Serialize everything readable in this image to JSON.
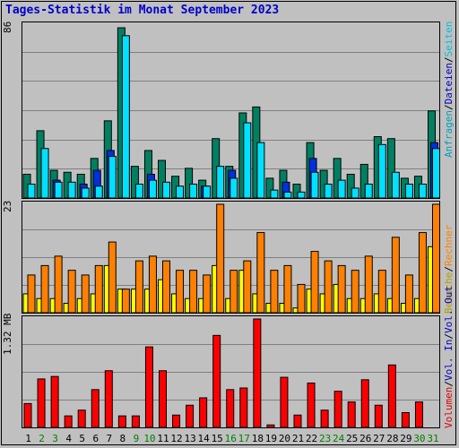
{
  "title": "Tages-Statistik im Monat September 2023",
  "top_max_label": "86",
  "mid_max_label": "23",
  "bottom_max_label": "1.32 MB",
  "legend": {
    "anfragen": "Anfragen",
    "dateien": "Dateien",
    "seiten": "Seiten",
    "besuche": "Besuche",
    "rechner": "Rechner",
    "vol_in": "Vol. In",
    "vol_out": "Vol. Out",
    "volumen": "Volumen",
    "sep": "/"
  },
  "colors": {
    "anfragen": "#008060",
    "dateien": "#00e0ff",
    "seiten": "#0030e0",
    "besuche": "#ffff00",
    "rechner": "#ff8000",
    "volumen": "#ff0000",
    "weekday_label": "#000000",
    "weekend_label": "#008000",
    "background": "#c0c0c0"
  },
  "chart_data": [
    {
      "type": "bar",
      "categories": [
        "1",
        "2",
        "3",
        "4",
        "5",
        "6",
        "7",
        "8",
        "9",
        "10",
        "11",
        "12",
        "13",
        "14",
        "15",
        "16",
        "17",
        "18",
        "19",
        "20",
        "21",
        "22",
        "23",
        "24",
        "25",
        "26",
        "27",
        "28",
        "29",
        "30",
        "31"
      ],
      "weekend_days": [
        "2",
        "3",
        "9",
        "10",
        "16",
        "17",
        "23",
        "24",
        "30",
        "31"
      ],
      "ylim": [
        0,
        86
      ],
      "series": [
        {
          "name": "Anfragen",
          "values": [
            12,
            34,
            14,
            13,
            12,
            20,
            39,
            86,
            16,
            24,
            19,
            11,
            15,
            9,
            30,
            16,
            43,
            46,
            10,
            14,
            7,
            28,
            14,
            20,
            12,
            17,
            31,
            30,
            10,
            11,
            44
          ]
        },
        {
          "name": "Dateien",
          "values": [
            7,
            25,
            8,
            8,
            5,
            6,
            21,
            82,
            7,
            9,
            8,
            6,
            7,
            6,
            16,
            10,
            38,
            28,
            4,
            3,
            3,
            13,
            7,
            9,
            5,
            7,
            27,
            13,
            7,
            7,
            25
          ]
        },
        {
          "name": "Seiten",
          "values": [
            0,
            0,
            0,
            0,
            0,
            0,
            0,
            0,
            0,
            0,
            0,
            0,
            0,
            0,
            0,
            0,
            0,
            0,
            0,
            0,
            0,
            0,
            0,
            0,
            0,
            0,
            0,
            0,
            0,
            0,
            0
          ]
        },
        {
          "name": "Seiten (dunkel)",
          "values": [
            0,
            0,
            9,
            0,
            7,
            14,
            24,
            0,
            0,
            12,
            0,
            0,
            0,
            6,
            0,
            14,
            0,
            0,
            0,
            8,
            0,
            20,
            0,
            0,
            0,
            0,
            0,
            0,
            0,
            0,
            28
          ]
        }
      ]
    },
    {
      "type": "bar",
      "categories": [
        "1",
        "2",
        "3",
        "4",
        "5",
        "6",
        "7",
        "8",
        "9",
        "10",
        "11",
        "12",
        "13",
        "14",
        "15",
        "16",
        "17",
        "18",
        "19",
        "20",
        "21",
        "22",
        "23",
        "24",
        "25",
        "26",
        "27",
        "28",
        "29",
        "30",
        "31"
      ],
      "ylim": [
        0,
        23
      ],
      "series": [
        {
          "name": "Besuche",
          "values": [
            4,
            3,
            3,
            2,
            3,
            4,
            10,
            5,
            5,
            5,
            7,
            4,
            3,
            3,
            10,
            3,
            9,
            4,
            2,
            2,
            1,
            5,
            4,
            6,
            3,
            3,
            4,
            3,
            2,
            3,
            14
          ]
        },
        {
          "name": "Rechner",
          "values": [
            8,
            10,
            12,
            9,
            8,
            10,
            15,
            5,
            11,
            12,
            11,
            9,
            9,
            8,
            23,
            9,
            11,
            17,
            9,
            10,
            6,
            13,
            11,
            10,
            9,
            12,
            9,
            16,
            8,
            17,
            23
          ]
        }
      ]
    },
    {
      "type": "bar",
      "categories": [
        "1",
        "2",
        "3",
        "4",
        "5",
        "6",
        "7",
        "8",
        "9",
        "10",
        "11",
        "12",
        "13",
        "14",
        "15",
        "16",
        "17",
        "18",
        "19",
        "20",
        "21",
        "22",
        "23",
        "24",
        "25",
        "26",
        "27",
        "28",
        "29",
        "30",
        "31"
      ],
      "ylim": [
        0,
        1.32
      ],
      "ylabel": "MB",
      "series": [
        {
          "name": "Volumen",
          "values": [
            0.29,
            0.59,
            0.62,
            0.14,
            0.21,
            0.46,
            0.69,
            0.14,
            0.14,
            0.98,
            0.69,
            0.15,
            0.27,
            0.36,
            1.12,
            0.46,
            0.48,
            1.32,
            0.03,
            0.61,
            0.15,
            0.54,
            0.21,
            0.44,
            0.31,
            0.58,
            0.27,
            0.76,
            0.18,
            0.31,
            0.0
          ]
        }
      ]
    }
  ]
}
